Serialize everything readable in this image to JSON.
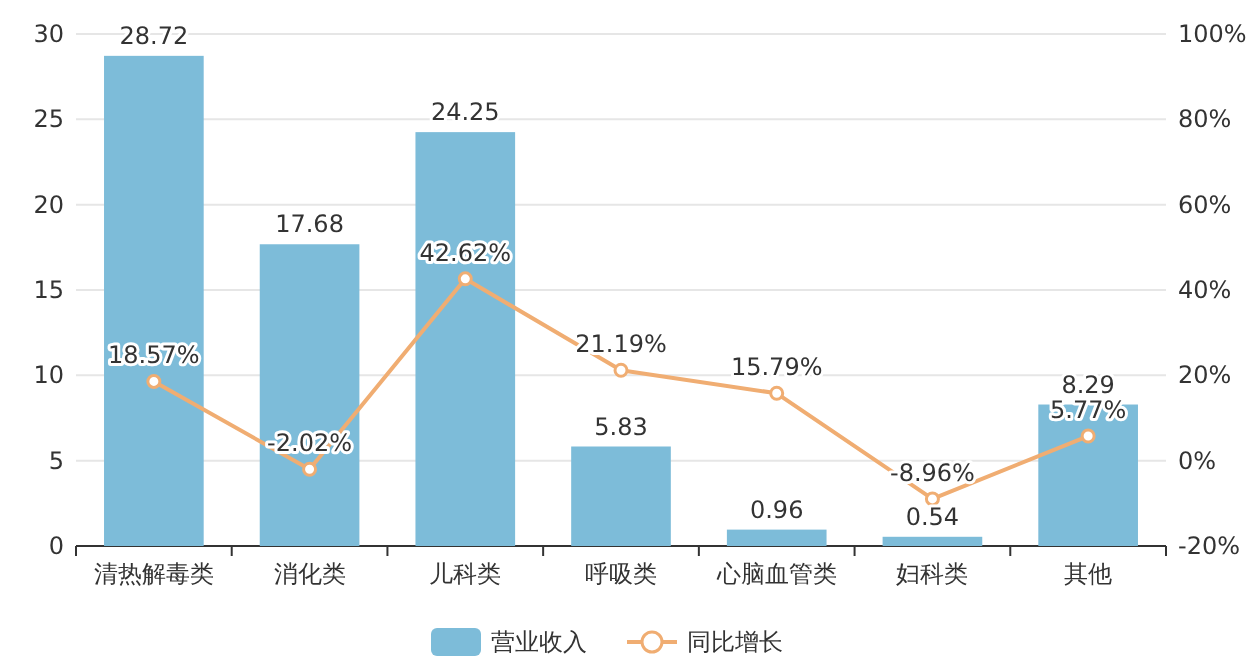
{
  "chart_data": {
    "type": "bar",
    "categories": [
      "清热解毒类",
      "消化类",
      "儿科类",
      "呼吸类",
      "心脑血管类",
      "妇科类",
      "其他"
    ],
    "series": [
      {
        "name": "营业收入",
        "color": "#7dbcd9",
        "values": [
          28.72,
          17.68,
          24.25,
          5.83,
          0.96,
          0.54,
          8.29
        ],
        "value_labels": [
          "28.72",
          "17.68",
          "24.25",
          "5.83",
          "0.96",
          "0.54",
          "8.29"
        ]
      },
      {
        "name": "同比增长",
        "type": "line",
        "axis": "y2",
        "color": "#f0ad72",
        "marker": "circle",
        "values": [
          18.57,
          -2.02,
          42.62,
          21.19,
          15.79,
          -8.96,
          5.77
        ],
        "value_labels": [
          "18.57%",
          "-2.02%",
          "42.62%",
          "21.19%",
          "15.79%",
          "-8.96%",
          "5.77%"
        ]
      }
    ],
    "ylim": [
      0,
      30
    ],
    "yticks": [
      0,
      5,
      10,
      15,
      20,
      25,
      30
    ],
    "y2lim": [
      -20,
      100
    ],
    "y2ticks": [
      {
        "value": -20,
        "label": "-20%"
      },
      {
        "value": 0,
        "label": "0%"
      },
      {
        "value": 20,
        "label": "20%"
      },
      {
        "value": 40,
        "label": "40%"
      },
      {
        "value": 60,
        "label": "60%"
      },
      {
        "value": 80,
        "label": "80%"
      },
      {
        "value": 100,
        "label": "100%"
      }
    ],
    "grid": "y",
    "legend": "bottom"
  }
}
